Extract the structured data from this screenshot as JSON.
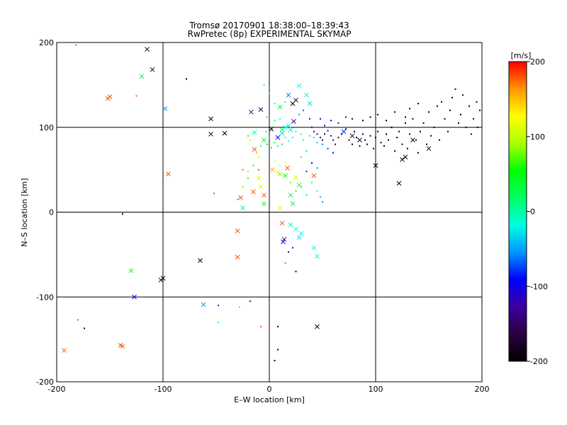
{
  "chart_data": {
    "type": "scatter",
    "title": "Tromsø 20170901 18:38:00–18:39:43",
    "subtitle": "RwPretec (8p) EXPERIMENTAL SKYMAP",
    "xlabel": "E–W location [km]",
    "ylabel": "N–S location [km]",
    "xlim": [
      -200,
      200
    ],
    "ylim": [
      -200,
      200
    ],
    "x_ticks": [
      -200,
      -100,
      0,
      100,
      200
    ],
    "y_ticks": [
      -200,
      -100,
      0,
      100,
      200
    ],
    "grid": true,
    "colorbar": {
      "label": "[m/s]",
      "range": [
        -200,
        200
      ],
      "ticks": [
        200,
        100,
        0,
        -100,
        -200
      ],
      "colormap": [
        "#000000",
        "#2a0040",
        "#3c00a0",
        "#0000ff",
        "#0096ff",
        "#00ffe0",
        "#00ff64",
        "#00ff00",
        "#aaff00",
        "#ffff00",
        "#ff9600",
        "#ff0000"
      ]
    },
    "markers": {
      "cross": [
        [
          -115,
          192,
          -200
        ],
        [
          -110,
          168,
          -200
        ],
        [
          -55,
          110,
          -200
        ],
        [
          -55,
          92,
          -200
        ],
        [
          -42,
          93,
          -200
        ],
        [
          -152,
          134,
          180
        ],
        [
          -150,
          136,
          180
        ],
        [
          -120,
          160,
          20
        ],
        [
          -98,
          122,
          -50
        ],
        [
          -95,
          45,
          180
        ],
        [
          -65,
          -57,
          -200
        ],
        [
          -102,
          -80,
          -200
        ],
        [
          -140,
          -157,
          180
        ],
        [
          -130,
          -69,
          60
        ],
        [
          -127,
          -100,
          -90
        ],
        [
          -62,
          -109,
          -50
        ],
        [
          -30,
          -22,
          180
        ],
        [
          -30,
          -53,
          180
        ],
        [
          -27,
          17,
          180
        ],
        [
          -25,
          5,
          0
        ],
        [
          -17,
          118,
          -130
        ],
        [
          -14,
          94,
          0
        ],
        [
          -14,
          74,
          180
        ],
        [
          -8,
          121,
          -150
        ],
        [
          -5,
          85,
          40
        ],
        [
          -10,
          40,
          110
        ],
        [
          -8,
          30,
          110
        ],
        [
          -15,
          24,
          180
        ],
        [
          -5,
          20,
          180
        ],
        [
          -5,
          10,
          40
        ],
        [
          2,
          98,
          -200
        ],
        [
          10,
          124,
          40
        ],
        [
          12,
          97,
          10
        ],
        [
          15,
          100,
          -20
        ],
        [
          18,
          102,
          -20
        ],
        [
          20,
          97,
          -20
        ],
        [
          12,
          93,
          -30
        ],
        [
          8,
          88,
          -100
        ],
        [
          23,
          107,
          -120
        ],
        [
          18,
          138,
          -60
        ],
        [
          25,
          132,
          -200
        ],
        [
          22,
          128,
          -200
        ],
        [
          28,
          149,
          -20
        ],
        [
          35,
          138,
          -20
        ],
        [
          38,
          128,
          -30
        ],
        [
          8,
          47,
          130
        ],
        [
          10,
          45,
          80
        ],
        [
          15,
          43,
          60
        ],
        [
          3,
          50,
          150
        ],
        [
          17,
          52,
          180
        ],
        [
          25,
          41,
          110
        ],
        [
          42,
          43,
          180
        ],
        [
          20,
          20,
          40
        ],
        [
          22,
          10,
          20
        ],
        [
          28,
          32,
          60
        ],
        [
          10,
          5,
          110
        ],
        [
          12,
          -13,
          180
        ],
        [
          14,
          -32,
          -130
        ],
        [
          13,
          -35,
          -110
        ],
        [
          20,
          -15,
          0
        ],
        [
          25,
          -20,
          -20
        ],
        [
          30,
          -25,
          -20
        ],
        [
          28,
          -30,
          -30
        ],
        [
          42,
          -42,
          -20
        ],
        [
          45,
          -52,
          -20
        ],
        [
          45,
          -135,
          -200
        ],
        [
          70,
          95,
          -80
        ],
        [
          78,
          90,
          -150
        ],
        [
          85,
          85,
          -180
        ],
        [
          100,
          55,
          -200
        ],
        [
          122,
          34,
          -200
        ],
        [
          125,
          62,
          -200
        ],
        [
          128,
          65,
          -200
        ],
        [
          135,
          85,
          -200
        ],
        [
          150,
          75,
          -200
        ],
        [
          -193,
          -163,
          180
        ],
        [
          -138,
          -158,
          180
        ],
        [
          -100,
          -78,
          -200
        ]
      ],
      "point": [
        [
          -182,
          197,
          180
        ],
        [
          -174,
          -137,
          -200
        ],
        [
          -180,
          -127,
          180
        ],
        [
          -125,
          137,
          180
        ],
        [
          -78,
          157,
          -200
        ],
        [
          -138,
          -2,
          -200
        ],
        [
          -52,
          22,
          180
        ],
        [
          -48,
          -110,
          -80
        ],
        [
          -48,
          -130,
          -20
        ],
        [
          -28,
          -112,
          -20
        ],
        [
          -18,
          -105,
          -130
        ],
        [
          -8,
          -135,
          180
        ],
        [
          5,
          -175,
          -200
        ],
        [
          8,
          -135,
          -200
        ],
        [
          8,
          -162,
          -200
        ],
        [
          18,
          -47,
          -150
        ],
        [
          22,
          -42,
          -120
        ],
        [
          25,
          -70,
          -200
        ],
        [
          15,
          -60,
          180
        ],
        [
          -10,
          65,
          100
        ],
        [
          -15,
          55,
          40
        ],
        [
          -20,
          40,
          60
        ],
        [
          -25,
          30,
          80
        ],
        [
          -30,
          15,
          40
        ],
        [
          -5,
          150,
          -20
        ],
        [
          0,
          140,
          -20
        ],
        [
          5,
          128,
          10
        ],
        [
          15,
          130,
          10
        ],
        [
          -2,
          112,
          10
        ],
        [
          5,
          108,
          0
        ],
        [
          10,
          110,
          -20
        ],
        [
          3,
          100,
          20
        ],
        [
          -3,
          95,
          40
        ],
        [
          0,
          88,
          30
        ],
        [
          -8,
          78,
          20
        ],
        [
          -20,
          90,
          60
        ],
        [
          -18,
          85,
          100
        ],
        [
          -12,
          70,
          150
        ],
        [
          -25,
          50,
          180
        ],
        [
          -20,
          48,
          150
        ],
        [
          -10,
          50,
          180
        ],
        [
          5,
          60,
          120
        ],
        [
          10,
          55,
          110
        ],
        [
          15,
          58,
          120
        ],
        [
          20,
          35,
          80
        ],
        [
          25,
          25,
          40
        ],
        [
          30,
          30,
          30
        ],
        [
          35,
          20,
          20
        ],
        [
          40,
          35,
          10
        ],
        [
          45,
          25,
          -20
        ],
        [
          48,
          18,
          -40
        ],
        [
          50,
          12,
          -60
        ],
        [
          35,
          48,
          -80
        ],
        [
          40,
          58,
          -100
        ],
        [
          45,
          52,
          -60
        ],
        [
          30,
          65,
          -20
        ],
        [
          35,
          72,
          -30
        ],
        [
          28,
          115,
          -50
        ],
        [
          32,
          120,
          -70
        ],
        [
          38,
          110,
          -90
        ],
        [
          40,
          100,
          -110
        ],
        [
          42,
          95,
          -130
        ],
        [
          45,
          92,
          -150
        ],
        [
          48,
          88,
          -160
        ],
        [
          50,
          85,
          -170
        ],
        [
          52,
          92,
          -150
        ],
        [
          55,
          96,
          -120
        ],
        [
          58,
          90,
          -110
        ],
        [
          60,
          85,
          -130
        ],
        [
          62,
          80,
          -150
        ],
        [
          65,
          88,
          -170
        ],
        [
          68,
          92,
          -180
        ],
        [
          72,
          98,
          -160
        ],
        [
          75,
          85,
          -170
        ],
        [
          78,
          80,
          -190
        ],
        [
          80,
          95,
          -200
        ],
        [
          82,
          88,
          -180
        ],
        [
          85,
          78,
          -190
        ],
        [
          88,
          92,
          -200
        ],
        [
          90,
          85,
          -200
        ],
        [
          92,
          80,
          -190
        ],
        [
          95,
          90,
          -200
        ],
        [
          98,
          75,
          -200
        ],
        [
          100,
          88,
          -200
        ],
        [
          102,
          95,
          -200
        ],
        [
          105,
          82,
          -200
        ],
        [
          108,
          78,
          -200
        ],
        [
          110,
          92,
          -200
        ],
        [
          112,
          85,
          -200
        ],
        [
          115,
          100,
          -200
        ],
        [
          118,
          72,
          -200
        ],
        [
          120,
          88,
          -200
        ],
        [
          122,
          95,
          -200
        ],
        [
          125,
          80,
          -200
        ],
        [
          128,
          105,
          -200
        ],
        [
          130,
          75,
          -200
        ],
        [
          132,
          92,
          -200
        ],
        [
          135,
          110,
          -200
        ],
        [
          138,
          85,
          -200
        ],
        [
          140,
          70,
          -200
        ],
        [
          142,
          95,
          -200
        ],
        [
          145,
          105,
          -200
        ],
        [
          148,
          80,
          -200
        ],
        [
          150,
          118,
          -200
        ],
        [
          152,
          90,
          -200
        ],
        [
          155,
          100,
          -200
        ],
        [
          158,
          125,
          -200
        ],
        [
          160,
          85,
          -200
        ],
        [
          162,
          130,
          -200
        ],
        [
          165,
          110,
          -200
        ],
        [
          168,
          95,
          -200
        ],
        [
          170,
          120,
          -200
        ],
        [
          172,
          135,
          -200
        ],
        [
          175,
          145,
          -200
        ],
        [
          178,
          105,
          -200
        ],
        [
          180,
          115,
          -200
        ],
        [
          185,
          100,
          -200
        ],
        [
          188,
          125,
          -200
        ],
        [
          192,
          110,
          -200
        ],
        [
          195,
          130,
          -200
        ],
        [
          198,
          120,
          -200
        ],
        [
          196,
          100,
          -200
        ],
        [
          190,
          92,
          -200
        ],
        [
          182,
          138,
          -200
        ],
        [
          140,
          128,
          -200
        ],
        [
          132,
          122,
          -200
        ],
        [
          128,
          112,
          -200
        ],
        [
          118,
          118,
          -200
        ],
        [
          110,
          108,
          -200
        ],
        [
          102,
          115,
          -200
        ],
        [
          95,
          112,
          -200
        ],
        [
          88,
          108,
          -200
        ],
        [
          78,
          110,
          -180
        ],
        [
          72,
          112,
          -150
        ],
        [
          65,
          105,
          -130
        ],
        [
          58,
          108,
          -110
        ],
        [
          52,
          102,
          -100
        ],
        [
          48,
          110,
          -90
        ],
        [
          60,
          70,
          -100
        ],
        [
          55,
          75,
          -80
        ],
        [
          50,
          80,
          -60
        ],
        [
          45,
          82,
          -40
        ],
        [
          42,
          88,
          -30
        ],
        [
          38,
          90,
          -20
        ],
        [
          32,
          85,
          -10
        ],
        [
          30,
          92,
          0
        ],
        [
          25,
          95,
          -10
        ],
        [
          22,
          88,
          0
        ],
        [
          18,
          84,
          -20
        ],
        [
          15,
          88,
          0
        ],
        [
          12,
          80,
          10
        ],
        [
          8,
          78,
          20
        ],
        [
          5,
          82,
          30
        ],
        [
          2,
          76,
          40
        ],
        [
          -2,
          80,
          50
        ]
      ]
    }
  }
}
